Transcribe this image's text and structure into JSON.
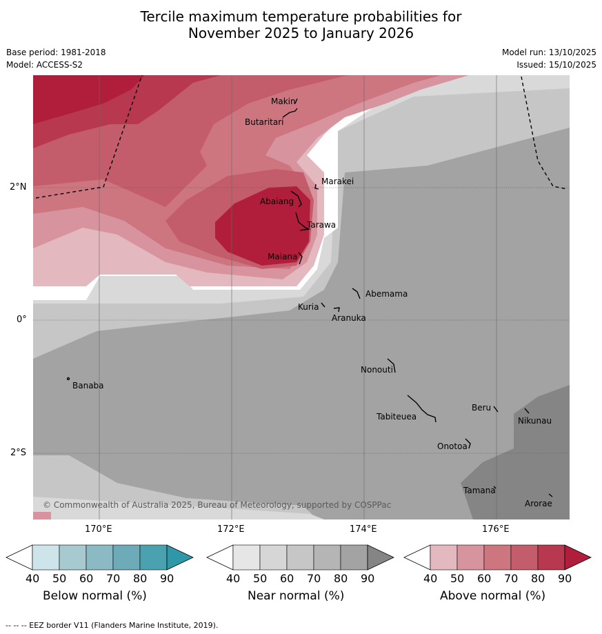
{
  "title_line1": "Tercile maximum temperature probabilities for",
  "title_line2": "November 2025 to January 2026",
  "base_period": "Base period: 1981-2018",
  "model": "Model: ACCESS-S2",
  "model_run": "Model run: 13/10/2025",
  "issued": "Issued: 15/10/2025",
  "lat_labels": [
    "2°N",
    "0°",
    "2°S"
  ],
  "lon_labels": [
    "170°E",
    "172°E",
    "174°E",
    "176°E"
  ],
  "places": [
    "Makin",
    "Butaritari",
    "Marakei",
    "Abaiang",
    "Tarawa",
    "Maiana",
    "Abemama",
    "Kuria",
    "Aranuka",
    "Nonouti",
    "Banaba",
    "Tabiteuea",
    "Beru",
    "Nikunau",
    "Onotoa",
    "Tamana",
    "Arorae"
  ],
  "copyright": "© Commonwealth of Australia 2025, Bureau of Meteorology, supported by COSPPac",
  "colorbars": [
    {
      "label": "Below normal (%)",
      "ticks": [
        "40",
        "50",
        "60",
        "70",
        "80",
        "90"
      ],
      "colors": [
        "#cde4ea",
        "#a7c9d0",
        "#8bb9c4",
        "#6dabb8",
        "#4aa2b1",
        "#2f97a8"
      ]
    },
    {
      "label": "Near normal (%)",
      "ticks": [
        "40",
        "50",
        "60",
        "70",
        "80",
        "90"
      ],
      "colors": [
        "#e6e6e6",
        "#d6d6d6",
        "#c6c6c6",
        "#b5b5b5",
        "#a3a3a3",
        "#858585"
      ]
    },
    {
      "label": "Above normal (%)",
      "ticks": [
        "40",
        "50",
        "60",
        "70",
        "80",
        "90"
      ],
      "colors": [
        "#e3b8bf",
        "#d8949e",
        "#cd7680",
        "#c45d6b",
        "#b8394f",
        "#b01e3c"
      ]
    }
  ],
  "footer": "-- -- -- EEZ border V11 (Flanders Marine Institute, 2019)."
}
